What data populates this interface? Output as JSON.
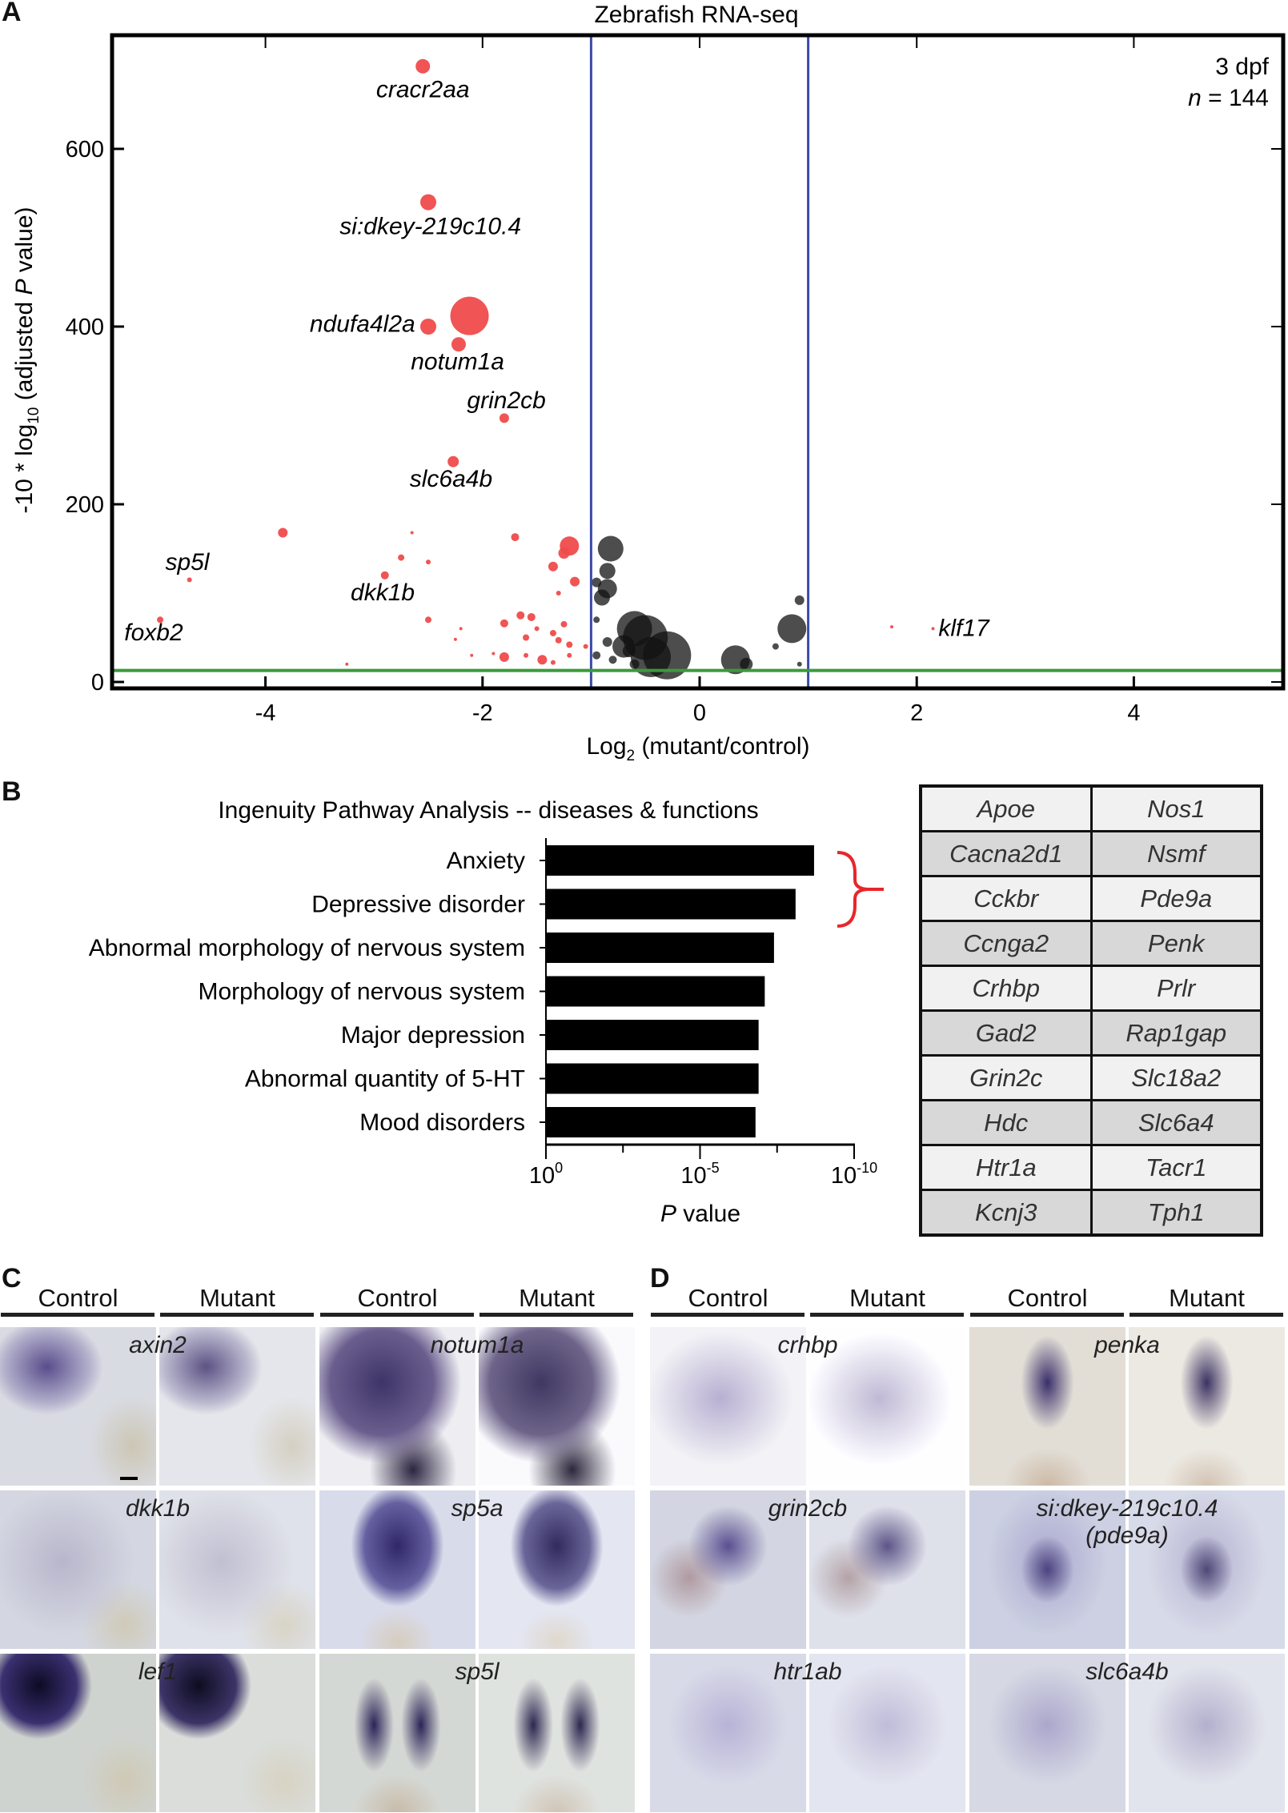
{
  "panels": {
    "a": "A",
    "b": "B",
    "c": "C",
    "d": "D"
  },
  "chart_data": [
    {
      "type": "scatter",
      "title": "Zebrafish RNA-seq",
      "xlabel_main": "Log",
      "xlabel_sub": "2",
      "xlabel_rest": " (mutant/control)",
      "ylabel_pre": "-10 * log",
      "ylabel_sub": "10",
      "ylabel_mid": " (adjusted ",
      "ylabel_it": "P",
      "ylabel_post": " value)",
      "xlim": [
        -5.3,
        5.5
      ],
      "ylim": [
        -7,
        728
      ],
      "xticks": [
        -4,
        -2,
        0,
        2,
        4
      ],
      "yticks": [
        0,
        200,
        400,
        600
      ],
      "annotation_line1": "3 dpf",
      "annotation_line2_it": "n",
      "annotation_line2": " = 144",
      "thresholds": {
        "fold_change_lines": [
          -1,
          1
        ],
        "significance_line": 13
      },
      "colors": {
        "significant": "#ef4b4b",
        "nonsignificant": "#111111",
        "fc_line": "#3c4aa8",
        "sig_line": "#3a9a3a"
      },
      "series": [
        {
          "name": "significant",
          "points": [
            [
              -2.55,
              693,
              9
            ],
            [
              -2.5,
              540,
              10
            ],
            [
              -2.5,
              400,
              10
            ],
            [
              -2.12,
              412,
              24
            ],
            [
              -2.22,
              380,
              9
            ],
            [
              -1.8,
              297,
              6
            ],
            [
              -2.27,
              248,
              7
            ],
            [
              -3.84,
              168,
              6
            ],
            [
              -2.65,
              168,
              2
            ],
            [
              -1.7,
              163,
              5
            ],
            [
              -1.2,
              153,
              12
            ],
            [
              -1.25,
              145,
              7
            ],
            [
              -2.75,
              140,
              4
            ],
            [
              -2.5,
              135,
              3
            ],
            [
              -1.35,
              130,
              6
            ],
            [
              -2.9,
              120,
              5
            ],
            [
              -4.7,
              115,
              3
            ],
            [
              -1.15,
              113,
              6
            ],
            [
              -1.3,
              100,
              3
            ],
            [
              -2.5,
              70,
              4
            ],
            [
              -4.97,
              70,
              4
            ],
            [
              -1.65,
              75,
              5
            ],
            [
              -1.55,
              73,
              5
            ],
            [
              -1.8,
              66,
              5
            ],
            [
              -1.25,
              65,
              4
            ],
            [
              -2.2,
              60,
              2
            ],
            [
              -1.5,
              60,
              3
            ],
            [
              -1.35,
              55,
              4
            ],
            [
              -2.25,
              48,
              2
            ],
            [
              -1.6,
              50,
              4
            ],
            [
              -1.3,
              47,
              4
            ],
            [
              -1.2,
              42,
              4
            ],
            [
              -1.05,
              40,
              3
            ],
            [
              -1.8,
              28,
              6
            ],
            [
              -1.45,
              25,
              6
            ],
            [
              -1.6,
              30,
              3
            ],
            [
              -1.9,
              32,
              2
            ],
            [
              -2.1,
              30,
              2
            ],
            [
              -1.2,
              30,
              3
            ],
            [
              -1.35,
              22,
              3
            ],
            [
              -3.25,
              20,
              2
            ],
            [
              2.15,
              60,
              2
            ],
            [
              1.77,
              62,
              2
            ]
          ]
        },
        {
          "name": "nonsignificant",
          "points": [
            [
              -0.82,
              150,
              16
            ],
            [
              -0.85,
              125,
              10
            ],
            [
              -0.95,
              112,
              6
            ],
            [
              -0.85,
              105,
              12
            ],
            [
              -0.9,
              95,
              10
            ],
            [
              -0.6,
              60,
              22
            ],
            [
              -0.5,
              50,
              28
            ],
            [
              -0.3,
              30,
              30
            ],
            [
              -0.7,
              40,
              14
            ],
            [
              -0.45,
              28,
              25
            ],
            [
              0.33,
              25,
              18
            ],
            [
              0.43,
              20,
              8
            ],
            [
              0.85,
              60,
              18
            ],
            [
              0.92,
              92,
              6
            ],
            [
              0.7,
              40,
              4
            ],
            [
              -0.95,
              70,
              4
            ],
            [
              -0.85,
              45,
              6
            ],
            [
              -0.65,
              35,
              8
            ],
            [
              -0.8,
              25,
              5
            ],
            [
              0.92,
              20,
              3
            ],
            [
              -0.6,
              20,
              6
            ],
            [
              -0.95,
              30,
              5
            ]
          ]
        }
      ],
      "labels": [
        {
          "text": "cracr2aa",
          "x": -2.55,
          "y": 667,
          "anchor": "middle"
        },
        {
          "text": "si:dkey-219c10.4",
          "x": -2.48,
          "y": 513,
          "anchor": "middle"
        },
        {
          "text": "ndufa4l2a",
          "x": -2.62,
          "y": 403,
          "anchor": "end"
        },
        {
          "text": "notum1a",
          "x": -2.23,
          "y": 361,
          "anchor": "middle"
        },
        {
          "text": "grin2cb",
          "x": -1.78,
          "y": 317,
          "anchor": "middle"
        },
        {
          "text": "slc6a4b",
          "x": -2.29,
          "y": 229,
          "anchor": "middle"
        },
        {
          "text": "sp5l",
          "x": -4.72,
          "y": 135,
          "anchor": "middle"
        },
        {
          "text": "dkk1b",
          "x": -2.92,
          "y": 101,
          "anchor": "middle"
        },
        {
          "text": "foxb2",
          "x": -5.03,
          "y": 56,
          "anchor": "middle"
        },
        {
          "text": "klf17",
          "x": 2.2,
          "y": 61,
          "anchor": "start"
        }
      ]
    },
    {
      "type": "bar",
      "orientation": "horizontal",
      "title": "Ingenuity Pathway Analysis -- diseases & functions",
      "categories": [
        "Anxiety",
        "Depressive disorder",
        "Abnormal morphology of nervous system",
        "Morphology of nervous system",
        "Major depression",
        "Abnormal quantity of 5-HT",
        "Mood disorders"
      ],
      "values_neg_log10_p": [
        8.7,
        8.1,
        7.4,
        7.1,
        6.9,
        6.9,
        6.8
      ],
      "xlim_neg_log10": [
        0,
        10
      ],
      "xticks": [
        {
          "base": "10",
          "exp": "0",
          "v": 0
        },
        {
          "base": "10",
          "exp": "-5",
          "v": 5
        },
        {
          "base": "10",
          "exp": "-10",
          "v": 10
        }
      ],
      "xlabel_it": "P",
      "xlabel": " value",
      "bar_color": "#000000",
      "bracket_color": "#e8262a"
    }
  ],
  "gene_table": [
    [
      "Apoe",
      "Nos1"
    ],
    [
      "Cacna2d1",
      "Nsmf"
    ],
    [
      "Cckbr",
      "Pde9a"
    ],
    [
      "Ccnga2",
      "Penk"
    ],
    [
      "Crhbp",
      "Prlr"
    ],
    [
      "Gad2",
      "Rap1gap"
    ],
    [
      "Grin2c",
      "Slc18a2"
    ],
    [
      "Hdc",
      "Slc6a4"
    ],
    [
      "Htr1a",
      "Tacr1"
    ],
    [
      "Kcnj3",
      "Tph1"
    ]
  ],
  "ish": {
    "headers": [
      "Control",
      "Mutant",
      "Control",
      "Mutant"
    ],
    "c_rows": [
      [
        "axin2",
        "notum1a"
      ],
      [
        "dkk1b",
        "sp5a"
      ],
      [
        "lef1",
        "sp5l"
      ]
    ],
    "d_rows": [
      [
        "crhbp",
        "penka"
      ],
      [
        "grin2cb",
        "si:dkey-219c10.4"
      ],
      [
        "htr1ab",
        "slc6a4b"
      ]
    ],
    "d_extra": "(pde9a)"
  }
}
